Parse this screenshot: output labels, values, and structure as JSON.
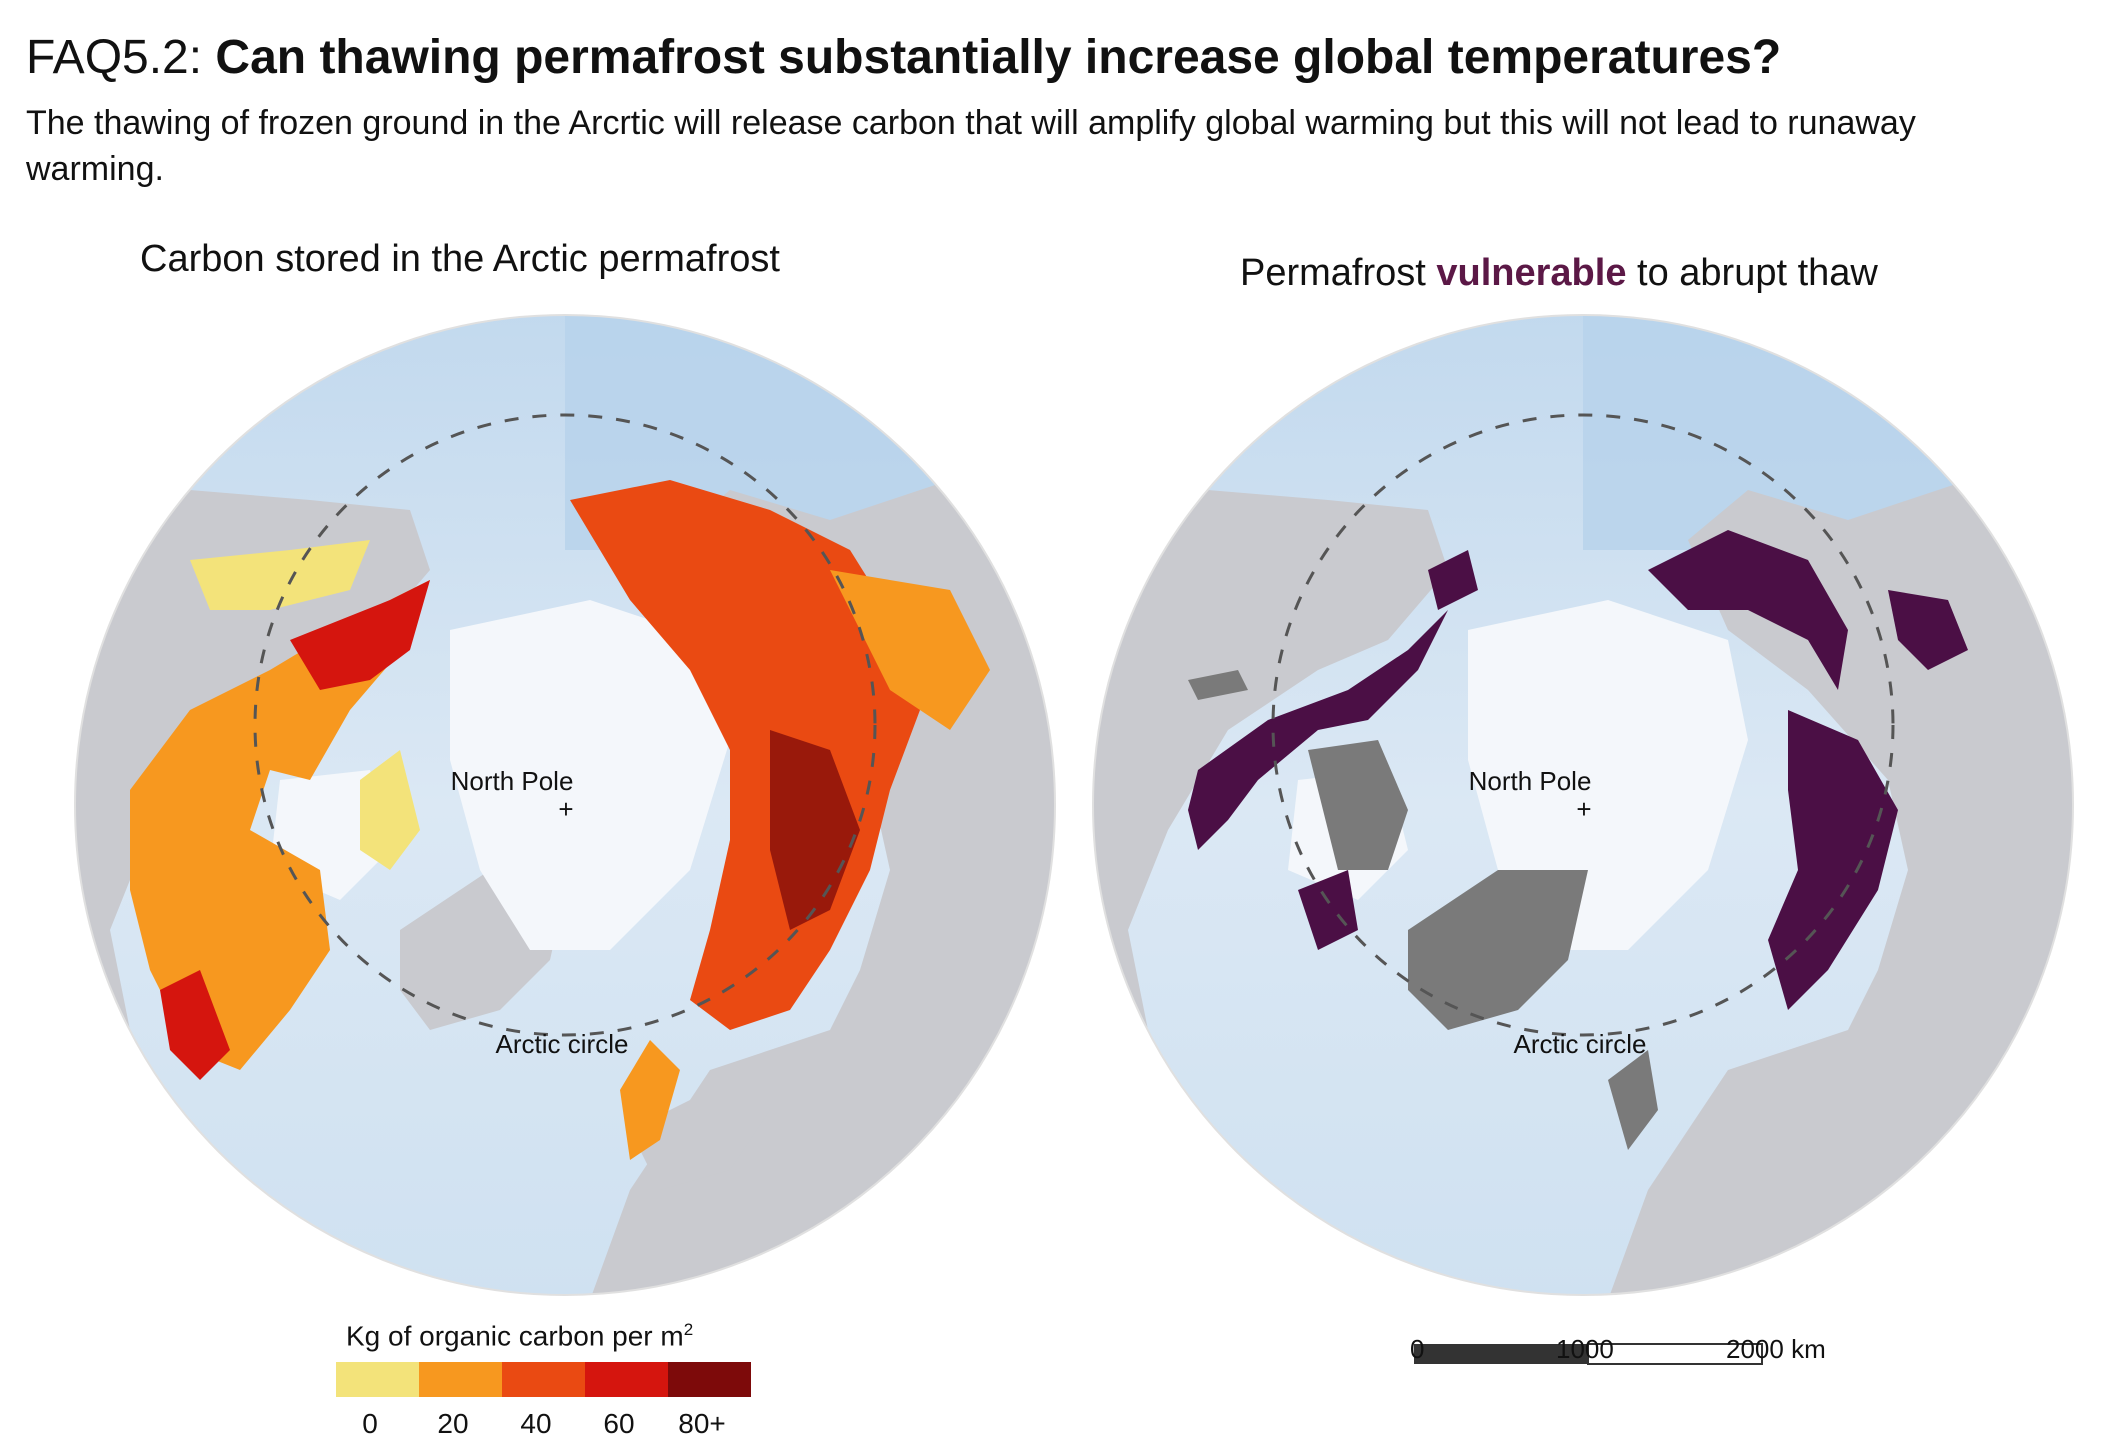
{
  "header": {
    "prefix": "FAQ5.2: ",
    "title": "Can thawing permafrost substantially increase global temperatures?",
    "subtitle": "The thawing of frozen ground in the Arcrtic will release carbon that will amplify global warming but this will not lead to runaway warming."
  },
  "left_panel": {
    "title": "Carbon stored in the Arctic permafrost",
    "north_pole_label": "North Pole",
    "pole_mark": "+",
    "arctic_circle_label": "Arctic circle"
  },
  "right_panel": {
    "title_before": "Permafrost ",
    "title_highlight": "vulnerable",
    "title_after": " to abrupt thaw",
    "north_pole_label": "North Pole",
    "pole_mark": "+",
    "arctic_circle_label": "Arctic circle"
  },
  "legend": {
    "title": "Kg of organic carbon per m",
    "title_sup": "2",
    "colors": [
      "#f3e37a",
      "#f7981f",
      "#ea4a12",
      "#d5150e",
      "#7d0a0a"
    ],
    "ticks": [
      "0",
      "20",
      "40",
      "60",
      "80+"
    ]
  },
  "scale_bar": {
    "labels": [
      "0",
      "1000",
      "2000 km"
    ]
  },
  "colors": {
    "land": "#c9cacf",
    "ocean": "#c7dbee",
    "ice": "#f4f7fb",
    "vulnerable": "#4b0f45",
    "vulnerable_other": "#7a7a7a",
    "highlight_text": "#5b1846"
  }
}
